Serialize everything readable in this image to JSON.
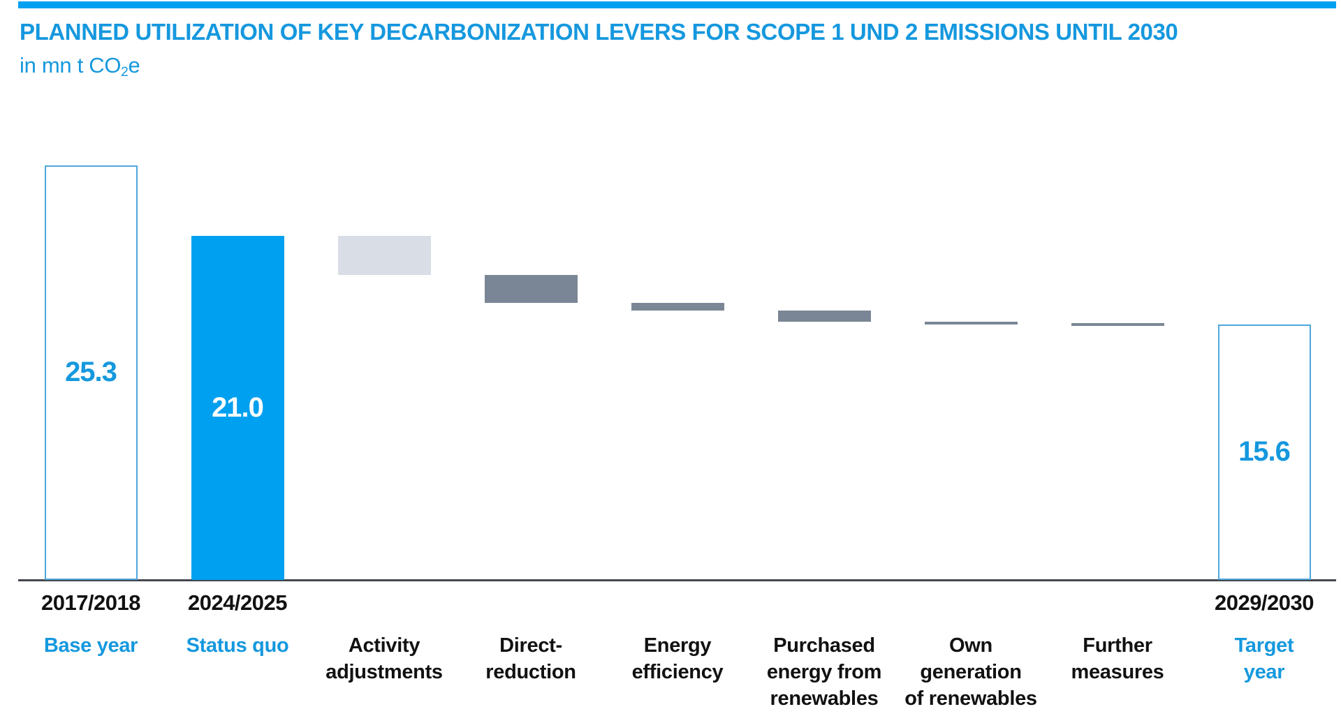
{
  "header": {
    "title": "PLANNED UTILIZATION OF KEY DECARBONIZATION LEVERS FOR SCOPE 1 UND 2 EMISSIONS UNTIL 2030",
    "unit_prefix": "in mn t CO",
    "unit_sub": "2",
    "unit_suffix": "e"
  },
  "colors": {
    "accent_blue": "#00a0f0",
    "text_blue": "#1598de",
    "outline_blue": "#4fa6dd",
    "light_gray": "#d8dde6",
    "dark_gray": "#7a8695",
    "axis_dark": "#43474c",
    "label_black": "#111111",
    "value_on_fill": "#ffffff"
  },
  "chart_data": {
    "type": "bar",
    "subtype": "waterfall",
    "title": "PLANNED UTILIZATION OF KEY DECARBONIZATION LEVERS FOR SCOPE 1 UND 2 EMISSIONS UNTIL 2030",
    "ylabel": "in mn t CO2e",
    "ylim": [
      0,
      25.3
    ],
    "grid": false,
    "legend": "none",
    "columns": [
      {
        "id": "base-year",
        "year": "2017/2018",
        "label_lines": [
          "Base year"
        ],
        "label_color": "blue",
        "kind": "total-outline",
        "from": 0,
        "to": 25.3,
        "value_label": "25.3"
      },
      {
        "id": "status-quo",
        "year": "2024/2025",
        "label_lines": [
          "Status quo"
        ],
        "label_color": "blue",
        "kind": "total-filled",
        "from": 0,
        "to": 21.0,
        "value_label": "21.0"
      },
      {
        "id": "activity-adjustments",
        "year": "",
        "label_lines": [
          "Activity",
          "adjustments"
        ],
        "label_color": "black",
        "kind": "step-light",
        "from": 21.0,
        "to": 18.6,
        "value_label": ""
      },
      {
        "id": "direct-reduction",
        "year": "",
        "label_lines": [
          "Direct-",
          "reduction"
        ],
        "label_color": "black",
        "kind": "step-dark",
        "from": 18.6,
        "to": 16.9,
        "value_label": ""
      },
      {
        "id": "energy-efficiency",
        "year": "",
        "label_lines": [
          "Energy",
          "efficiency"
        ],
        "label_color": "black",
        "kind": "step-dark",
        "from": 16.9,
        "to": 16.45,
        "value_label": ""
      },
      {
        "id": "purchased-energy-from-renewables",
        "year": "",
        "label_lines": [
          "Purchased",
          "energy from",
          "renewables"
        ],
        "label_color": "black",
        "kind": "step-dark",
        "from": 16.45,
        "to": 15.75,
        "value_label": ""
      },
      {
        "id": "own-generation-of-renewables",
        "year": "",
        "label_lines": [
          "Own",
          "generation",
          "of renewables"
        ],
        "label_color": "black",
        "kind": "step-dark",
        "from": 15.75,
        "to": 15.67,
        "value_label": ""
      },
      {
        "id": "further-measures",
        "year": "",
        "label_lines": [
          "Further",
          "measures"
        ],
        "label_color": "black",
        "kind": "step-dark",
        "from": 15.67,
        "to": 15.6,
        "value_label": ""
      },
      {
        "id": "target-year",
        "year": "2029/2030",
        "label_lines": [
          "Target",
          "year"
        ],
        "label_color": "blue",
        "kind": "total-outline",
        "from": 0,
        "to": 15.6,
        "value_label": "15.6"
      }
    ]
  }
}
